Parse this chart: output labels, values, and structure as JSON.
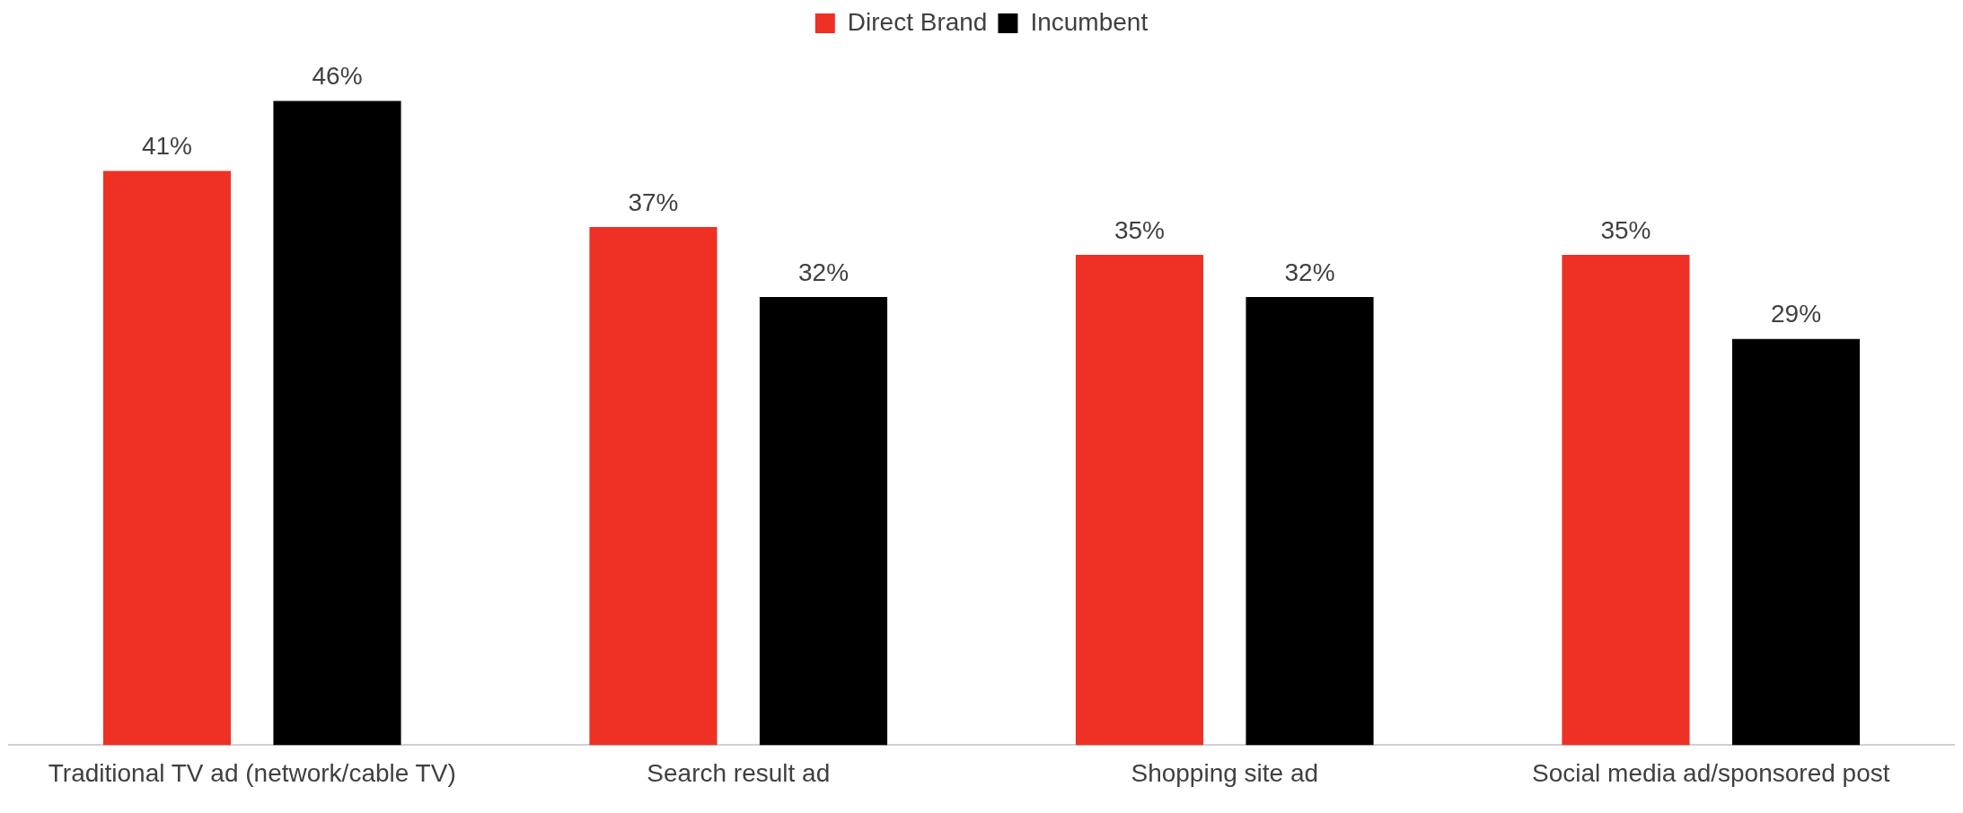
{
  "chart_data": {
    "type": "bar",
    "categories": [
      "Traditional TV ad (network/cable TV)",
      "Search result ad",
      "Shopping site ad",
      "Social media ad/sponsored post"
    ],
    "series": [
      {
        "name": "Direct Brand",
        "color": "#ee3124",
        "values": [
          41,
          37,
          35,
          35
        ],
        "value_labels": [
          "41%",
          "37%",
          "35%",
          "35%"
        ]
      },
      {
        "name": "Incumbent",
        "color": "#000000",
        "values": [
          46,
          32,
          32,
          29
        ],
        "value_labels": [
          "46%",
          "32%",
          "32%",
          "29%"
        ]
      }
    ],
    "legend": "top",
    "grid": false
  }
}
